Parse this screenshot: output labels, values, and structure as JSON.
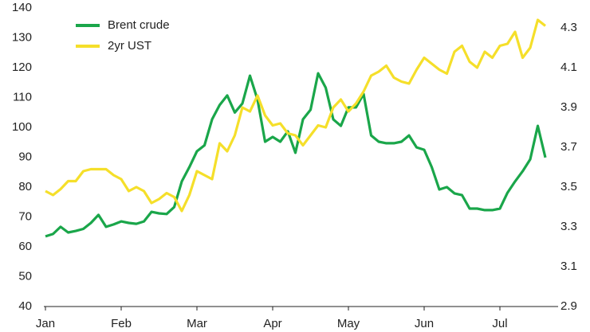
{
  "chart_data": {
    "type": "line",
    "categories": [
      "Jan",
      null,
      null,
      null,
      null,
      null,
      null,
      null,
      null,
      null,
      "Feb",
      null,
      null,
      null,
      null,
      null,
      null,
      null,
      null,
      null,
      "Mar",
      null,
      null,
      null,
      null,
      null,
      null,
      null,
      null,
      null,
      "Apr",
      null,
      null,
      null,
      null,
      null,
      null,
      null,
      null,
      null,
      "May",
      null,
      null,
      null,
      null,
      null,
      null,
      null,
      null,
      null,
      "Jun",
      null,
      null,
      null,
      null,
      null,
      null,
      null,
      null,
      null,
      "Jul",
      null,
      null,
      null,
      null,
      null,
      null
    ],
    "series": [
      {
        "name": "Brent crude",
        "color": "#1aa64a",
        "values": [
          63.5,
          64.3,
          66.7,
          64.8,
          65.3,
          66,
          68,
          70.7,
          66.7,
          67.5,
          68.5,
          68,
          67.7,
          68.5,
          71.7,
          71.2,
          71,
          73.3,
          81.9,
          86.7,
          92,
          94,
          102.7,
          107.5,
          110.7,
          105,
          108,
          117.3,
          109.3,
          95.2,
          96.8,
          95.2,
          98.7,
          91.5,
          102.7,
          105.9,
          118.1,
          113.3,
          102.7,
          100.5,
          106.7,
          106.7,
          111.2,
          97.3,
          95.2,
          94.7,
          94.7,
          95.2,
          97.3,
          93.3,
          92.5,
          86.7,
          79.2,
          80,
          77.9,
          77.3,
          72.8,
          72.8,
          72.3,
          72.3,
          72.8,
          78.1,
          81.9,
          85.3,
          89.3,
          100.5,
          89.9
        ]
      },
      {
        "name": "2yr UST",
        "color": "#f5df2a",
        "axis": "y2",
        "values": [
          3.48,
          3.46,
          3.49,
          3.53,
          3.53,
          3.58,
          3.59,
          3.59,
          3.59,
          3.56,
          3.54,
          3.48,
          3.5,
          3.48,
          3.42,
          3.44,
          3.47,
          3.45,
          3.38,
          3.46,
          3.58,
          3.56,
          3.54,
          3.72,
          3.68,
          3.76,
          3.9,
          3.88,
          3.96,
          3.86,
          3.81,
          3.82,
          3.77,
          3.76,
          3.71,
          3.76,
          3.81,
          3.8,
          3.9,
          3.94,
          3.88,
          3.92,
          3.98,
          4.06,
          4.08,
          4.11,
          4.05,
          4.03,
          4.02,
          4.09,
          4.15,
          4.12,
          4.09,
          4.07,
          4.18,
          4.21,
          4.13,
          4.1,
          4.18,
          4.15,
          4.21,
          4.22,
          4.28,
          4.15,
          4.2,
          4.34,
          4.31
        ]
      }
    ],
    "ylim": [
      40,
      140
    ],
    "yticks": [
      40,
      50,
      60,
      70,
      80,
      90,
      100,
      110,
      120,
      130,
      140
    ],
    "y2lim": [
      2.9,
      4.4
    ],
    "y2ticks": [
      2.9,
      3.1,
      3.3,
      3.5,
      3.7,
      3.9,
      4.1,
      4.3
    ],
    "legend": "top-left",
    "grid": false
  }
}
